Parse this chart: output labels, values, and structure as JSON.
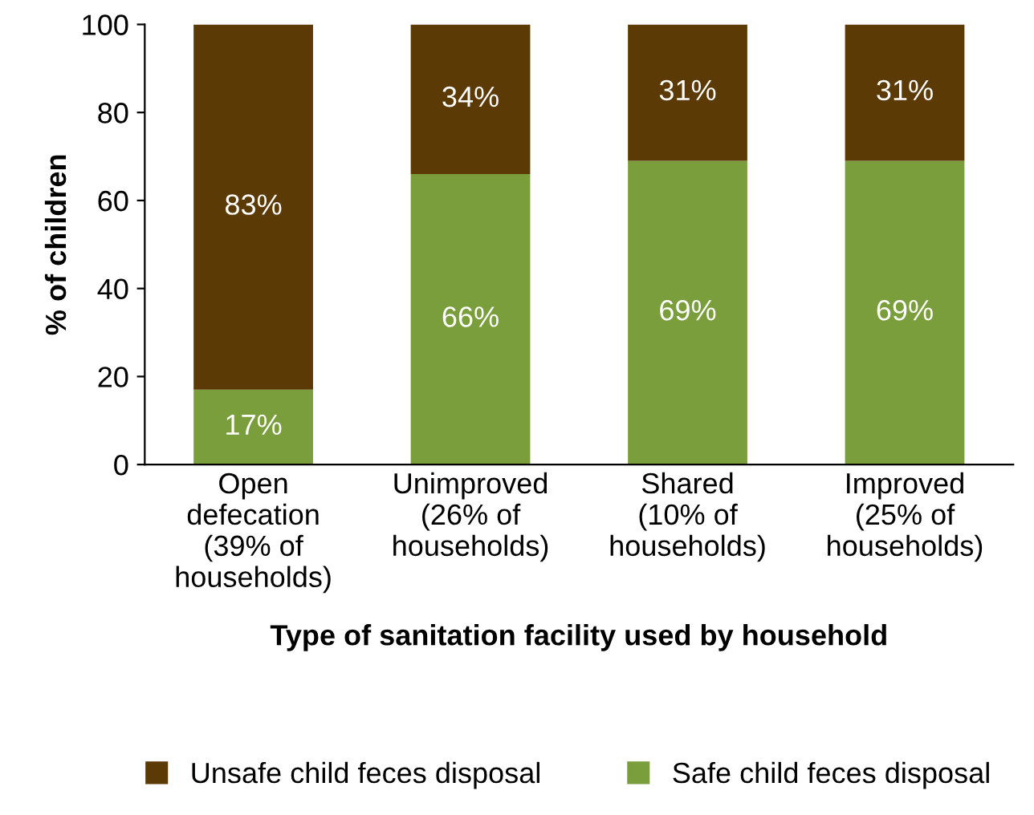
{
  "chart_data": {
    "type": "bar",
    "stacked": true,
    "xlabel": "Type of sanitation facility used by household",
    "ylabel": "% of children",
    "categories": [
      "Open\ndefecation\n(39% of\nhouseholds)",
      "Unimproved\n(26% of\nhouseholds)",
      "Shared\n(10% of\nhouseholds)",
      "Improved\n(25% of\nhouseholds)"
    ],
    "series": [
      {
        "name": "Safe child feces disposal",
        "color": "#7a9e3c",
        "values": [
          17,
          66,
          69,
          69
        ],
        "value_labels": [
          "17%",
          "66%",
          "69%",
          "69%"
        ]
      },
      {
        "name": "Unsafe child feces disposal",
        "color": "#5c3a06",
        "values": [
          83,
          34,
          31,
          31
        ],
        "value_labels": [
          "83%",
          "34%",
          "31%",
          "31%"
        ]
      }
    ],
    "ylim": [
      0,
      100
    ],
    "yticks": [
      0,
      20,
      40,
      60,
      80,
      100
    ],
    "grid": false,
    "legend": "bottom"
  }
}
